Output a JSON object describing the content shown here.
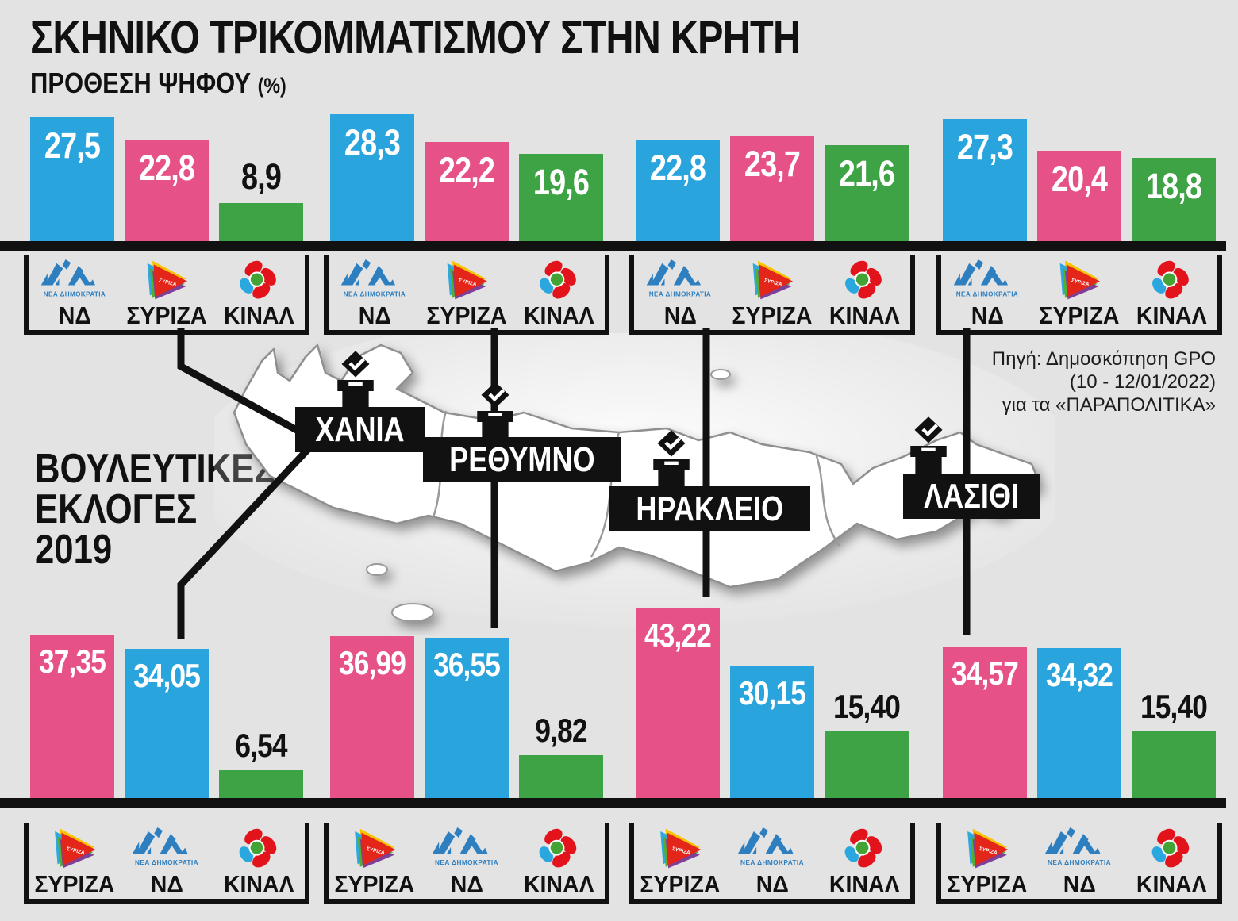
{
  "page": {
    "title": "ΣΚΗΝΙΚΟ ΤΡΙΚΟΜΜΑΤΙΣΜΟΥ ΣΤΗΝ ΚΡΗΤΗ",
    "subtitle": "ΠΡΟΘΕΣΗ ΨΗΦΟΥ",
    "subtitle_unit": "(%)",
    "election_heading_lines": [
      "ΒΟΥΛΕΥΤΙΚΕΣ",
      "ΕΚΛΟΓΕΣ",
      "2019"
    ],
    "source_lines": [
      "Πηγή: Δημοσκόπηση GPO",
      "(10 - 12/01/2022)",
      "για τα «ΠΑΡΑΠΟΛΙΤΙΚΑ»"
    ]
  },
  "parties": {
    "nd": "ΝΔ",
    "nd_full": "ΝΕΑ ΔΗΜΟΚΡΑΤΙΑ",
    "syriza": "ΣΥΡΙΖΑ",
    "kinal": "ΚΙΝΑΛ"
  },
  "regions": [
    "ΧΑΝΙΑ",
    "ΡΕΘΥΜΝΟ",
    "ΗΡΑΚΛΕΙΟ",
    "ΛΑΣΙΘΙ"
  ],
  "colors": {
    "nd_blue": "#29A4DD",
    "syriza_pink": "#E65187",
    "kinal_green": "#3EA344",
    "line_black": "#111111",
    "nd_logo_blue": "#2E7FC0",
    "kinal_red": "#E2131B",
    "kinal_blue": "#2BA7E0",
    "kinal_center_green": "#43A335"
  },
  "chart_data": [
    {
      "type": "bar",
      "title": "ΠΡΟΘΕΣΗ ΨΗΦΟΥ (%)",
      "unit": "%",
      "categories": [
        "ΧΑΝΙΑ",
        "ΡΕΘΥΜΝΟ",
        "ΗΡΑΚΛΕΙΟ",
        "ΛΑΣΙΘΙ"
      ],
      "series": [
        {
          "name": "ΝΔ",
          "color": "#29A4DD",
          "values": [
            27.5,
            28.3,
            22.8,
            27.3
          ],
          "labels": [
            "27,5",
            "28,3",
            "22,8",
            "27,3"
          ]
        },
        {
          "name": "ΣΥΡΙΖΑ",
          "color": "#E65187",
          "values": [
            22.8,
            22.2,
            23.7,
            20.4
          ],
          "labels": [
            "22,8",
            "22,2",
            "23,7",
            "20,4"
          ]
        },
        {
          "name": "ΚΙΝΑΛ",
          "color": "#3EA344",
          "values": [
            8.9,
            19.6,
            21.6,
            18.8
          ],
          "labels": [
            "8,9",
            "19,6",
            "21,6",
            "18,8"
          ]
        }
      ]
    },
    {
      "type": "bar",
      "title": "ΒΟΥΛΕΥΤΙΚΕΣ ΕΚΛΟΓΕΣ 2019",
      "unit": "%",
      "categories": [
        "ΧΑΝΙΑ",
        "ΡΕΘΥΜΝΟ",
        "ΗΡΑΚΛΕΙΟ",
        "ΛΑΣΙΘΙ"
      ],
      "series": [
        {
          "name": "ΣΥΡΙΖΑ",
          "color": "#E65187",
          "values": [
            37.35,
            36.99,
            43.22,
            34.57
          ],
          "labels": [
            "37,35",
            "36,99",
            "43,22",
            "34,57"
          ]
        },
        {
          "name": "ΝΔ",
          "color": "#29A4DD",
          "values": [
            34.05,
            36.55,
            30.15,
            34.32
          ],
          "labels": [
            "34,05",
            "36,55",
            "30,15",
            "34,32"
          ]
        },
        {
          "name": "ΚΙΝΑΛ",
          "color": "#3EA344",
          "values": [
            6.54,
            9.82,
            15.4,
            15.4
          ],
          "labels": [
            "6,54",
            "9,82",
            "15,40",
            "15,40"
          ]
        }
      ]
    }
  ]
}
